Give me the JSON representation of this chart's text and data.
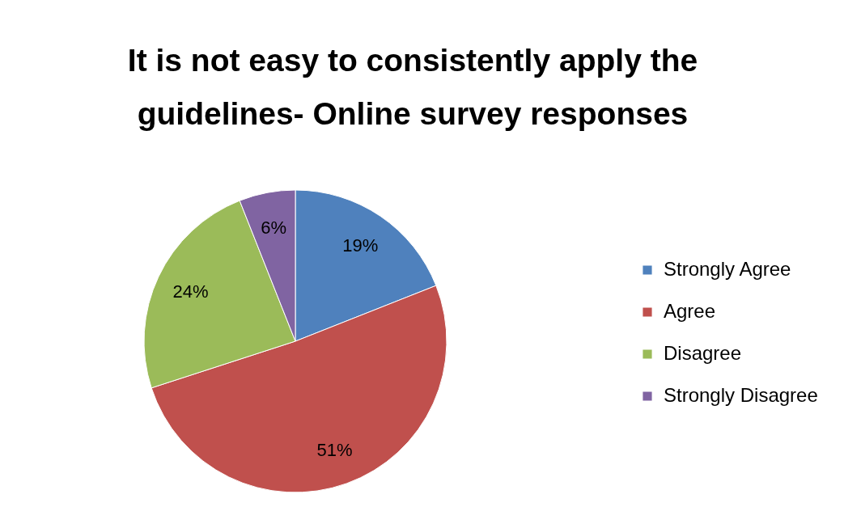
{
  "chart_data": {
    "type": "pie",
    "title": "It is not easy to consistently apply the guidelines- Online survey responses",
    "categories": [
      "Strongly Agree",
      "Agree",
      "Disagree",
      "Strongly Disagree"
    ],
    "values": [
      19,
      51,
      24,
      6
    ],
    "colors": [
      "#4f81bd",
      "#c0504d",
      "#9bbb59",
      "#8064a2"
    ],
    "value_labels": [
      "19%",
      "51%",
      "24%",
      "6%"
    ],
    "legend": "right"
  }
}
